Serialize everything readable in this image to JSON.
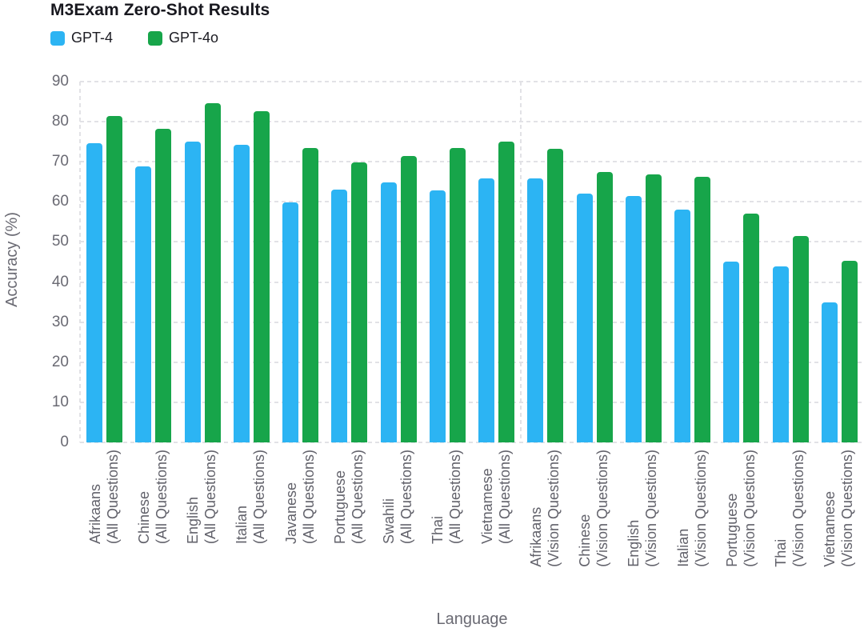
{
  "title": "M3Exam Zero-Shot Results",
  "legend": {
    "items": [
      {
        "label": "GPT-4",
        "color": "#2CB4F3"
      },
      {
        "label": "GPT-4o",
        "color": "#17A54A"
      }
    ]
  },
  "colors": {
    "gpt4": "#2CB4F3",
    "gpt4o": "#17A54A",
    "gridline": "#e2e2e6",
    "axis_text": "#6a6a73",
    "title_text": "#18181f"
  },
  "chart_data": {
    "type": "bar",
    "title": "M3Exam Zero-Shot Results",
    "xlabel": "Language",
    "ylabel": "Accuracy (%)",
    "ylim": [
      0,
      90
    ],
    "yticks": [
      0,
      10,
      20,
      30,
      40,
      50,
      60,
      70,
      80,
      90
    ],
    "grid": "horizontal dashed gridlines, dashed vertical divider at left edge and between All/Vision sections",
    "legend_position": "top-left",
    "categories": [
      "Afrikaans\n(All Questions)",
      "Chinese\n(All Questions)",
      "English\n(All Questions)",
      "Italian\n(All Questions)",
      "Javanese\n(All Questions)",
      "Portuguese\n(All Questions)",
      "Swahili\n(All Questions)",
      "Thai\n(All Questions)",
      "Vietnamese\n(All Questions)",
      "Afrikaans\n(Vision Questions)",
      "Chinese\n(Vision Questions)",
      "English\n(Vision Questions)",
      "Italian\n(Vision Questions)",
      "Portuguese\n(Vision Questions)",
      "Thai\n(Vision Questions)",
      "Vietnamese\n(Vision Questions)"
    ],
    "series": [
      {
        "name": "GPT-4",
        "color": "#2CB4F3",
        "values": [
          74.7,
          68.9,
          75.1,
          74.3,
          59.8,
          63.0,
          64.9,
          62.9,
          65.9,
          65.8,
          62.1,
          61.4,
          58.1,
          45.2,
          44.0,
          34.9
        ]
      },
      {
        "name": "GPT-4o",
        "color": "#17A54A",
        "values": [
          81.4,
          78.2,
          84.6,
          82.7,
          73.5,
          69.8,
          71.4,
          73.5,
          75.0,
          73.3,
          67.4,
          66.9,
          66.2,
          57.1,
          51.4,
          45.3
        ]
      }
    ],
    "section_divider_after_category": 9
  }
}
